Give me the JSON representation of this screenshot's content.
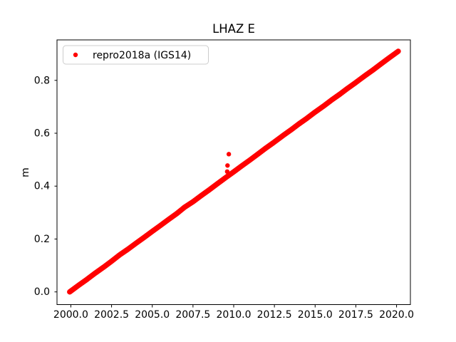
{
  "chart_data": {
    "type": "scatter",
    "title": "LHAZ E",
    "xlabel": "",
    "ylabel": "m",
    "grid": false,
    "xlim": [
      1999.15,
      2020.85
    ],
    "ylim": [
      -0.048,
      0.953
    ],
    "xticks": [
      2000.0,
      2002.5,
      2005.0,
      2007.5,
      2010.0,
      2012.5,
      2015.0,
      2017.5,
      2020.0
    ],
    "xticklabels": [
      "2000.0",
      "2002.5",
      "2005.0",
      "2007.5",
      "2010.0",
      "2012.5",
      "2015.0",
      "2017.5",
      "2020.0"
    ],
    "yticks": [
      0.0,
      0.2,
      0.4,
      0.6,
      0.8
    ],
    "yticklabels": [
      "0.0",
      "0.2",
      "0.4",
      "0.6",
      "0.8"
    ],
    "legend": {
      "position": "upper left",
      "entries": [
        {
          "label": "repro2018a (IGS14)",
          "marker": "dot",
          "color": "#ff0000"
        }
      ]
    },
    "series": [
      {
        "name": "repro2018a (IGS14)",
        "color": "#ff0000",
        "marker": ".",
        "trend_rate_m_per_yr": 0.045,
        "points": [
          [
            1999.93,
            0.0
          ],
          [
            2000.5,
            0.026
          ],
          [
            2001.0,
            0.048
          ],
          [
            2001.5,
            0.071
          ],
          [
            2002.0,
            0.093
          ],
          [
            2002.5,
            0.116
          ],
          [
            2003.0,
            0.14
          ],
          [
            2003.5,
            0.161
          ],
          [
            2004.0,
            0.184
          ],
          [
            2004.5,
            0.206
          ],
          [
            2005.0,
            0.229
          ],
          [
            2005.5,
            0.251
          ],
          [
            2006.0,
            0.274
          ],
          [
            2006.5,
            0.296
          ],
          [
            2007.0,
            0.321
          ],
          [
            2007.5,
            0.341
          ],
          [
            2008.0,
            0.364
          ],
          [
            2008.5,
            0.386
          ],
          [
            2009.0,
            0.409
          ],
          [
            2009.5,
            0.432
          ],
          [
            2010.0,
            0.454
          ],
          [
            2010.5,
            0.477
          ],
          [
            2011.0,
            0.499
          ],
          [
            2011.5,
            0.522
          ],
          [
            2012.0,
            0.545
          ],
          [
            2012.5,
            0.567
          ],
          [
            2013.0,
            0.59
          ],
          [
            2013.5,
            0.612
          ],
          [
            2014.0,
            0.635
          ],
          [
            2014.5,
            0.657
          ],
          [
            2015.0,
            0.68
          ],
          [
            2015.5,
            0.702
          ],
          [
            2016.0,
            0.725
          ],
          [
            2016.5,
            0.747
          ],
          [
            2017.0,
            0.77
          ],
          [
            2017.5,
            0.792
          ],
          [
            2018.0,
            0.815
          ],
          [
            2018.5,
            0.837
          ],
          [
            2019.0,
            0.86
          ],
          [
            2019.5,
            0.883
          ],
          [
            2020.1,
            0.91
          ]
        ],
        "outliers": [
          [
            2009.7,
            0.521
          ],
          [
            2009.62,
            0.478
          ],
          [
            2009.6,
            0.455
          ]
        ]
      }
    ]
  }
}
